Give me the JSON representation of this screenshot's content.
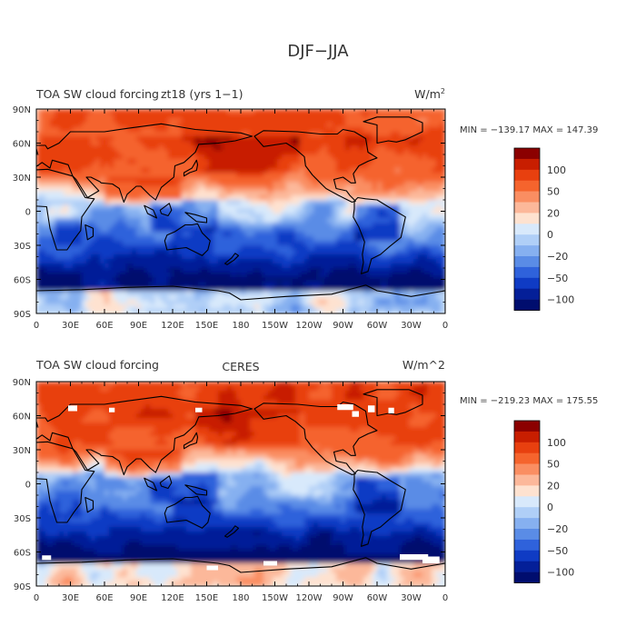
{
  "figure": {
    "title": "DJF−JJA"
  },
  "chart_data": [
    {
      "type": "heatmap",
      "title": "TOA SW cloud forcing",
      "case": "zt18 (yrs 1−1)",
      "units_label": "W/m",
      "units_sup": "2",
      "stats_text": "MIN = −139.17  MAX = 147.39",
      "min": -139.17,
      "max": 147.39,
      "x_ticks": [
        "0",
        "30E",
        "60E",
        "90E",
        "120E",
        "150E",
        "180",
        "150W",
        "120W",
        "90W",
        "60W",
        "30W",
        "0"
      ],
      "y_ticks": [
        "90N",
        "60N",
        "30N",
        "0",
        "30S",
        "60S",
        "90S"
      ],
      "colorbar": {
        "labels": [
          "100",
          "50",
          "20",
          "0",
          "−20",
          "−50",
          "−100"
        ],
        "colors": [
          "#8b0000",
          "#c81e00",
          "#e8400f",
          "#f5642d",
          "#fa8e62",
          "#fcb89a",
          "#fee2d0",
          "#d8e9fb",
          "#b0cff7",
          "#86b0f0",
          "#5a8ce6",
          "#2f62db",
          "#0f3bc4",
          "#041f98",
          "#000d6e"
        ]
      }
    },
    {
      "type": "heatmap",
      "title": "TOA SW cloud forcing",
      "case": "CERES",
      "units_label": "W/m^2",
      "stats_text": "MIN = −219.23  MAX = 175.55",
      "min": -219.23,
      "max": 175.55,
      "x_ticks": [
        "0",
        "30E",
        "60E",
        "90E",
        "120E",
        "150E",
        "180",
        "150W",
        "120W",
        "90W",
        "60W",
        "30W",
        "0"
      ],
      "y_ticks": [
        "90N",
        "60N",
        "30N",
        "0",
        "30S",
        "60S",
        "90S"
      ],
      "colorbar": {
        "labels": [
          "100",
          "50",
          "20",
          "0",
          "−20",
          "−50",
          "−100"
        ],
        "colors": [
          "#8b0000",
          "#c81e00",
          "#e8400f",
          "#f5642d",
          "#fa8e62",
          "#fcb89a",
          "#fee2d0",
          "#d8e9fb",
          "#b0cff7",
          "#86b0f0",
          "#5a8ce6",
          "#2f62db",
          "#0f3bc4",
          "#041f98",
          "#000d6e"
        ]
      }
    }
  ]
}
